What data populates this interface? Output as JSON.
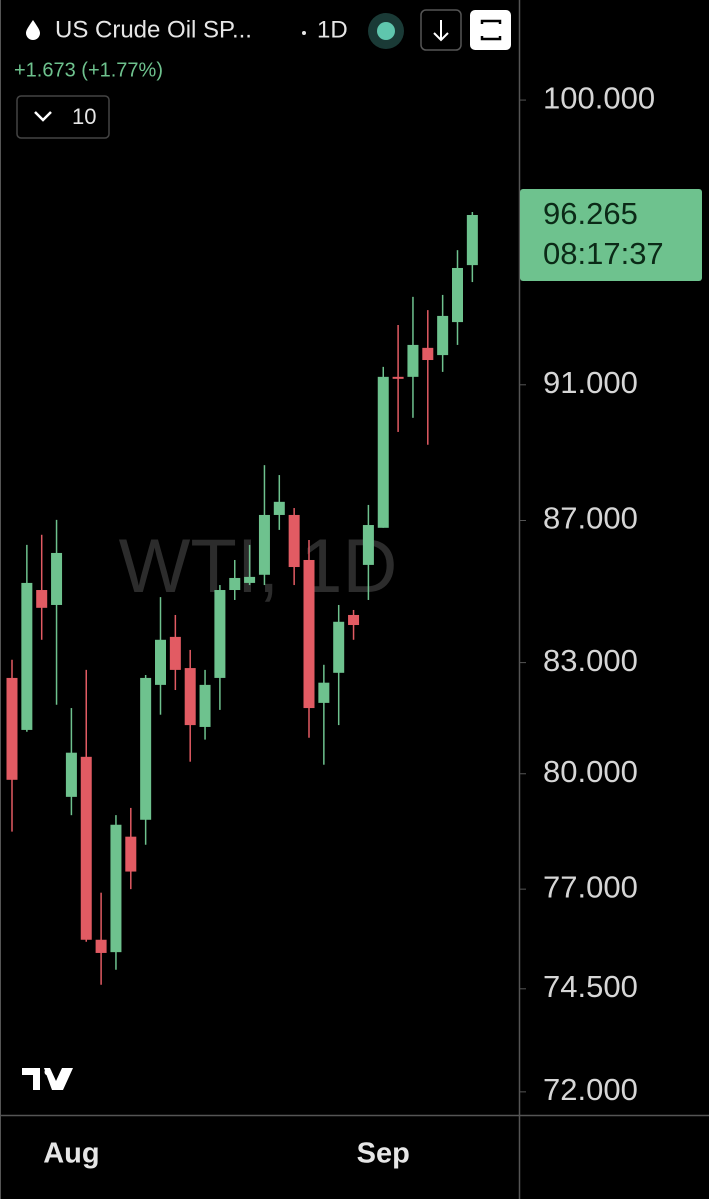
{
  "header": {
    "symbol": "US Crude Oil SP...",
    "interval": "1D",
    "change": "+1.673 (+1.77%)",
    "bars": "10"
  },
  "chart_data": {
    "type": "candlestick",
    "watermark": "WTI, 1D",
    "log_scale": true,
    "categories": [
      null,
      null,
      null,
      null,
      "Aug",
      null,
      null,
      null,
      null,
      null,
      null,
      null,
      null,
      null,
      null,
      null,
      null,
      null,
      null,
      null,
      null,
      null,
      null,
      null,
      null,
      "Sep",
      null,
      null,
      null,
      null,
      null,
      null
    ],
    "series": [
      {
        "up_color": "#6ec28e",
        "down_color": "#e25b63",
        "open": [
          82.58,
          81.17,
          85.02,
          84.6,
          79.39,
          80.45,
          75.72,
          75.41,
          78.35,
          78.79,
          82.39,
          83.71,
          82.85,
          81.25,
          82.58,
          85.02,
          85.22,
          85.45,
          87.16,
          87.16,
          85.87,
          81.9,
          82.72,
          84.32,
          85.73,
          86.79,
          91.24,
          91.24,
          92.12,
          91.9,
          92.91,
          94.68
        ],
        "high": [
          83.08,
          86.3,
          86.59,
          87.02,
          81.76,
          82.8,
          76.91,
          78.91,
          79.1,
          82.66,
          84.82,
          84.32,
          83.35,
          82.8,
          85.16,
          85.87,
          86.3,
          88.61,
          88.32,
          87.36,
          86.44,
          82.94,
          84.6,
          84.46,
          87.45,
          91.54,
          92.82,
          93.69,
          93.28,
          93.75,
          95.15,
          96.36
        ],
        "low": [
          78.48,
          81.12,
          83.63,
          81.85,
          78.91,
          75.67,
          74.6,
          74.97,
          77.0,
          78.14,
          81.58,
          82.25,
          80.32,
          80.91,
          81.71,
          84.74,
          85.16,
          85.16,
          86.73,
          85.16,
          80.96,
          80.24,
          81.3,
          83.63,
          84.74,
          86.79,
          89.59,
          90.01,
          89.21,
          91.39,
          92.21,
          94.15
        ],
        "close": [
          79.84,
          85.22,
          84.52,
          86.07,
          80.56,
          75.72,
          75.39,
          78.66,
          77.45,
          82.58,
          83.63,
          82.8,
          81.3,
          82.39,
          85.02,
          85.36,
          85.39,
          87.16,
          87.54,
          85.67,
          81.76,
          82.45,
          84.13,
          84.04,
          86.87,
          91.24,
          91.18,
          92.21,
          91.75,
          93.1,
          94.59,
          96.265
        ]
      }
    ],
    "ylim": [
      71.45,
      103.37
    ],
    "yticks": [
      {
        "value": 72,
        "label": "72.000"
      },
      {
        "value": 74.5,
        "label": "74.500"
      },
      {
        "value": 77,
        "label": "77.000"
      },
      {
        "value": 80,
        "label": "80.000"
      },
      {
        "value": 83,
        "label": "83.000"
      },
      {
        "value": 87,
        "label": "87.000"
      },
      {
        "value": 91,
        "label": "91.000"
      },
      {
        "value": 100,
        "label": "100.000"
      }
    ],
    "last_price": 96.265,
    "countdown": "08:17:37",
    "last_price_color": "#6ec28e"
  }
}
